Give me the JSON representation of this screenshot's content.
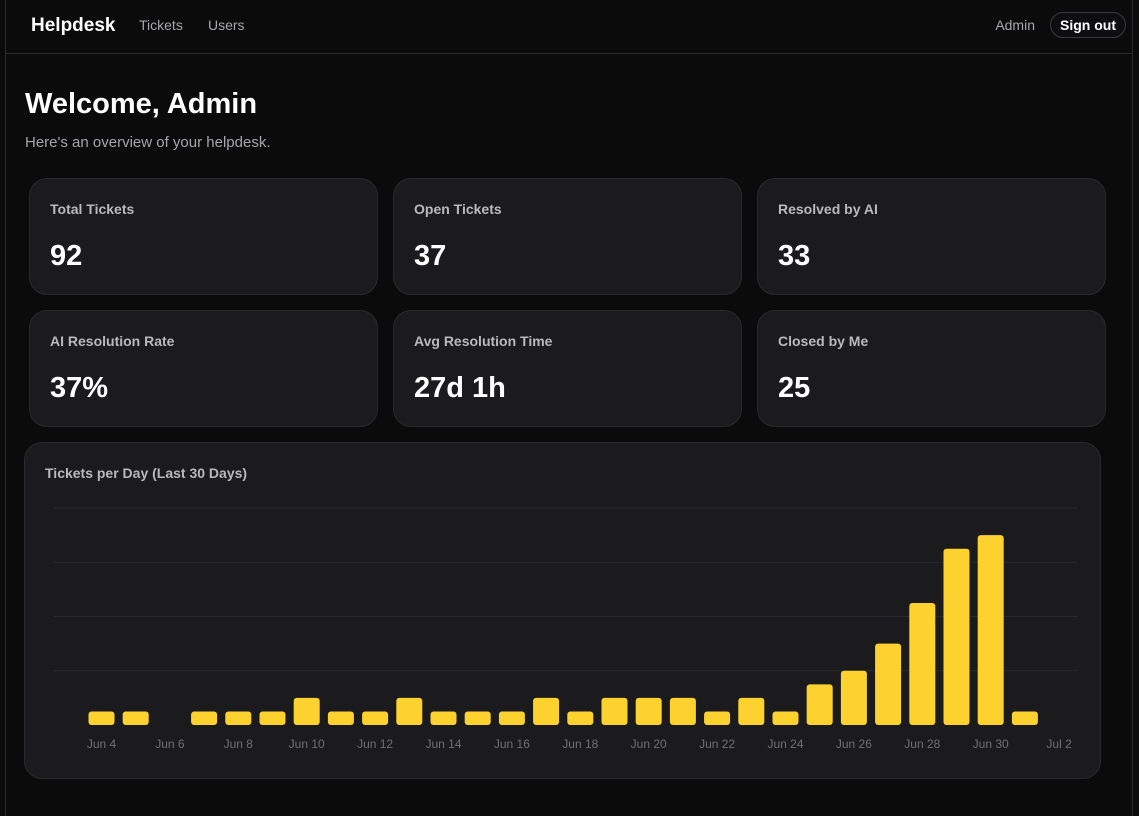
{
  "nav": {
    "brand": "Helpdesk",
    "links": [
      "Tickets",
      "Users"
    ],
    "user": "Admin",
    "signout_label": "Sign out"
  },
  "page": {
    "title": "Welcome, Admin",
    "subtitle": "Here's an overview of your helpdesk."
  },
  "stats": [
    {
      "label": "Total Tickets",
      "value": "92"
    },
    {
      "label": "Open Tickets",
      "value": "37"
    },
    {
      "label": "Resolved by AI",
      "value": "33"
    },
    {
      "label": "AI Resolution Rate",
      "value": "37%"
    },
    {
      "label": "Avg Resolution Time",
      "value": "27d 1h"
    },
    {
      "label": "Closed by Me",
      "value": "25"
    }
  ],
  "colors": {
    "accent": "#fdd22f",
    "background": "#0b0b0c",
    "card": "#1b1b1e"
  },
  "chart_data": {
    "type": "bar",
    "title": "Tickets per Day (Last 30 Days)",
    "categories": [
      "Jun 4",
      "Jun 5",
      "Jun 6",
      "Jun 7",
      "Jun 8",
      "Jun 9",
      "Jun 10",
      "Jun 11",
      "Jun 12",
      "Jun 13",
      "Jun 14",
      "Jun 15",
      "Jun 16",
      "Jun 17",
      "Jun 18",
      "Jun 19",
      "Jun 20",
      "Jun 21",
      "Jun 22",
      "Jun 23",
      "Jun 24",
      "Jun 25",
      "Jun 26",
      "Jun 27",
      "Jun 28",
      "Jun 29",
      "Jun 30",
      "Jul 1",
      "Jul 2",
      "Jul 3"
    ],
    "values": [
      1,
      1,
      0,
      1,
      1,
      1,
      2,
      1,
      1,
      2,
      1,
      1,
      1,
      2,
      1,
      2,
      2,
      2,
      1,
      2,
      1,
      3,
      4,
      6,
      9,
      13,
      14,
      1,
      0,
      0
    ],
    "tick_labels": [
      "Jun 4",
      "Jun 6",
      "Jun 8",
      "Jun 10",
      "Jun 12",
      "Jun 14",
      "Jun 16",
      "Jun 18",
      "Jun 20",
      "Jun 22",
      "Jun 24",
      "Jun 26",
      "Jun 28",
      "Jun 30",
      "Jul 2"
    ],
    "ylim": [
      0,
      16
    ],
    "grid": true
  }
}
